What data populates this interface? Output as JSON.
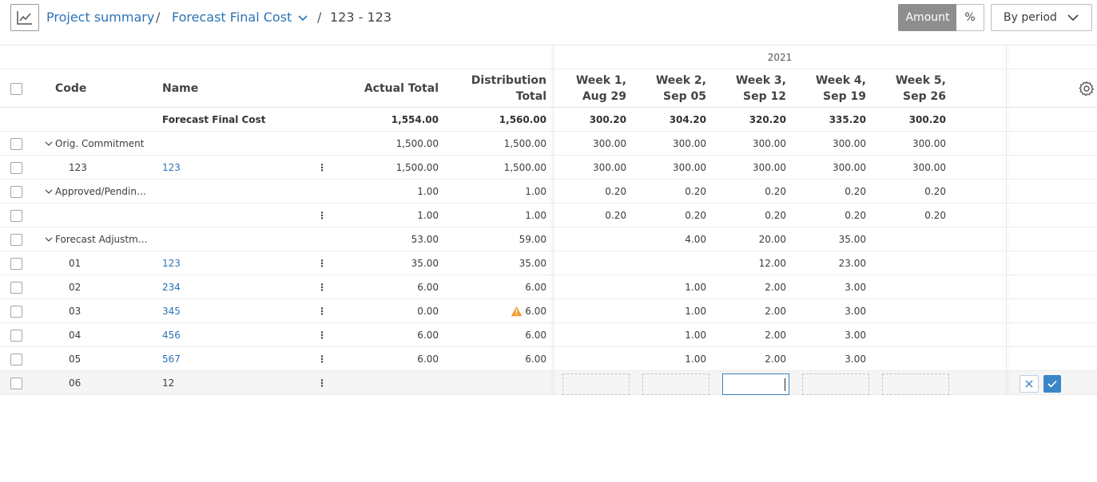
{
  "header": {
    "breadcrumb_project": "Project summary",
    "sep1": "/",
    "breadcrumb_forecast": "Forecast Final Cost",
    "sep2": "/",
    "breadcrumb_current": "123 - 123",
    "toggle_amount": "Amount",
    "toggle_percent": "%",
    "period_select": "By period"
  },
  "columns": {
    "year": "2021",
    "code": "Code",
    "name": "Name",
    "actual_total": "Actual Total",
    "distribution_total_1": "Distribution",
    "distribution_total_2": "Total",
    "weeks": [
      {
        "l1": "Week 1,",
        "l2": "Aug 29"
      },
      {
        "l1": "Week 2,",
        "l2": "Sep 05"
      },
      {
        "l1": "Week 3,",
        "l2": "Sep 12"
      },
      {
        "l1": "Week 4,",
        "l2": "Sep 19"
      },
      {
        "l1": "Week 5,",
        "l2": "Sep 26"
      }
    ]
  },
  "total_row": {
    "name": "Forecast Final Cost",
    "actual": "1,554.00",
    "dist": "1,560.00",
    "w": [
      "300.20",
      "304.20",
      "320.20",
      "335.20",
      "300.20"
    ]
  },
  "rows": [
    {
      "code": "Orig. Commitment",
      "name": "",
      "actual": "1,500.00",
      "dist": "1,500.00",
      "w": [
        "300.00",
        "300.00",
        "300.00",
        "300.00",
        "300.00"
      ]
    },
    {
      "code": "123",
      "name": "123",
      "actual": "1,500.00",
      "dist": "1,500.00",
      "w": [
        "300.00",
        "300.00",
        "300.00",
        "300.00",
        "300.00"
      ]
    },
    {
      "code": "Approved/Pendin…",
      "name": "",
      "actual": "1.00",
      "dist": "1.00",
      "w": [
        "0.20",
        "0.20",
        "0.20",
        "0.20",
        "0.20"
      ]
    },
    {
      "code": "",
      "name": "",
      "actual": "1.00",
      "dist": "1.00",
      "w": [
        "0.20",
        "0.20",
        "0.20",
        "0.20",
        "0.20"
      ]
    },
    {
      "code": "Forecast Adjustm…",
      "name": "",
      "actual": "53.00",
      "dist": "59.00",
      "w": [
        "",
        "4.00",
        "20.00",
        "35.00",
        ""
      ]
    },
    {
      "code": "01",
      "name": "123",
      "actual": "35.00",
      "dist": "35.00",
      "w": [
        "",
        "",
        "12.00",
        "23.00",
        ""
      ]
    },
    {
      "code": "02",
      "name": "234",
      "actual": "6.00",
      "dist": "6.00",
      "w": [
        "",
        "1.00",
        "2.00",
        "3.00",
        ""
      ]
    },
    {
      "code": "03",
      "name": "345",
      "actual": "0.00",
      "dist": "6.00",
      "w": [
        "",
        "1.00",
        "2.00",
        "3.00",
        ""
      ]
    },
    {
      "code": "04",
      "name": "456",
      "actual": "6.00",
      "dist": "6.00",
      "w": [
        "",
        "1.00",
        "2.00",
        "3.00",
        ""
      ]
    },
    {
      "code": "05",
      "name": "567",
      "actual": "6.00",
      "dist": "6.00",
      "w": [
        "",
        "1.00",
        "2.00",
        "3.00",
        ""
      ]
    }
  ],
  "edit_row": {
    "code": "06",
    "name": "12"
  },
  "menu_glyph": "⋮",
  "icons": {
    "chart": "line-chart-icon",
    "chevron": "chevron-down-icon",
    "settings": "gear-icon",
    "warning": "warning-icon",
    "cancel": "close-icon",
    "confirm": "checkmark-icon"
  },
  "colors": {
    "link": "#2b73b6",
    "toggle_active": "#8e8e8e",
    "confirm": "#3b86c8",
    "warning": "#f0a030"
  }
}
